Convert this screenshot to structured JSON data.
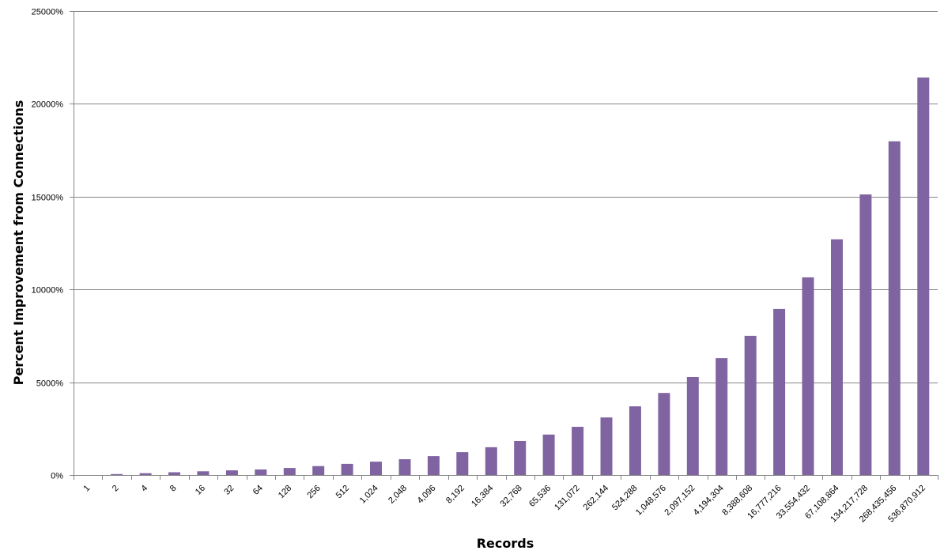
{
  "chart_data": {
    "type": "bar",
    "title": "",
    "xlabel": "Records",
    "ylabel": "Percent Improvement from Connections",
    "ylim": [
      0,
      25000
    ],
    "yticks": [
      0,
      5000,
      10000,
      15000,
      20000,
      25000
    ],
    "ytick_labels": [
      "0%",
      "5000%",
      "10000%",
      "15000%",
      "20000%",
      "25000%"
    ],
    "grid": "horizontal",
    "legend": "none",
    "bar_color": "#8064a2",
    "categories": [
      "1",
      "2",
      "4",
      "8",
      "16",
      "32",
      "64",
      "128",
      "256",
      "512",
      "1,024",
      "2,048",
      "4,096",
      "8,192",
      "16,384",
      "32,768",
      "65,536",
      "131,072",
      "262,144",
      "524,288",
      "1,048,576",
      "2,097,152",
      "4,194,304",
      "8,388,608",
      "16,777,216",
      "33,554,432",
      "67,108,864",
      "134,217,728",
      "268,435,456",
      "536,870,912"
    ],
    "series": [
      {
        "values": [
          0,
          50,
          100,
          150,
          200,
          250,
          300,
          380,
          480,
          600,
          720,
          850,
          1020,
          1230,
          1500,
          1830,
          2180,
          2600,
          3100,
          3700,
          4420,
          5280,
          6300,
          7500,
          8950,
          10650,
          12700,
          15120,
          17980,
          21420
        ]
      }
    ]
  }
}
